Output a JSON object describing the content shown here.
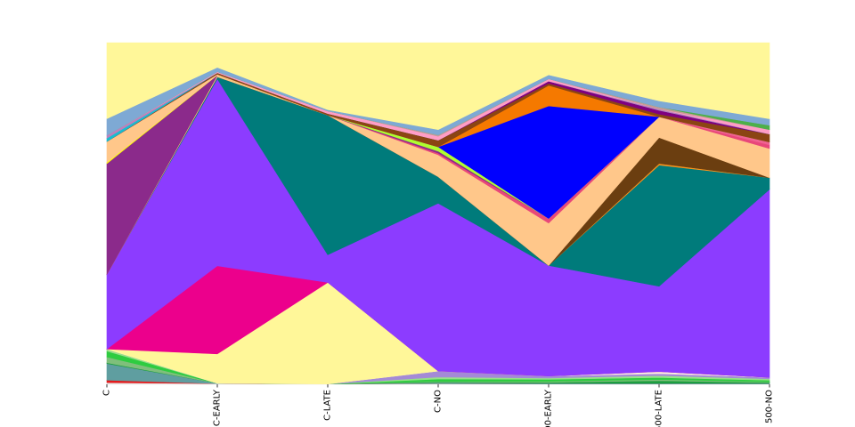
{
  "chart_data": {
    "type": "area",
    "stacked": true,
    "normalized": true,
    "categories": [
      "C",
      "C-EARLY",
      "C-LATE",
      "C-NO",
      "500-EARLY",
      "500-LATE",
      "500-NO"
    ],
    "grid": false,
    "legend": "none",
    "series": [
      {
        "color": "#e6e6e6",
        "values": [
          0.004,
          0.002,
          0.001,
          0.002,
          0.001,
          0.001,
          0.001
        ]
      },
      {
        "color": "#e41a1c",
        "values": [
          0.006,
          0.0,
          0.0,
          0.0,
          0.0,
          0.0,
          0.0
        ]
      },
      {
        "color": "#5f9ea0",
        "values": [
          0.04,
          0.001,
          0.0,
          0.003,
          0.002,
          0.002,
          0.002
        ]
      },
      {
        "color": "#1b9e3e",
        "values": [
          0.002,
          0.0,
          0.0,
          0.002,
          0.003,
          0.008,
          0.002
        ]
      },
      {
        "color": "#7fbf7b",
        "values": [
          0.014,
          0.0,
          0.0,
          0.002,
          0.003,
          0.004,
          0.002
        ]
      },
      {
        "color": "#2ecc40",
        "values": [
          0.014,
          0.0,
          0.0,
          0.007,
          0.006,
          0.006,
          0.004
        ]
      },
      {
        "color": "#98df8a",
        "values": [
          0.005,
          0.0,
          0.0,
          0.006,
          0.004,
          0.006,
          0.004
        ]
      },
      {
        "color": "#a48ad6",
        "values": [
          0.0,
          0.0,
          0.0,
          0.018,
          0.006,
          0.006,
          0.004
        ]
      },
      {
        "color": "#fff0e0",
        "values": [
          0.0,
          0.0,
          0.0,
          0.0,
          0.0,
          0.006,
          0.0
        ]
      },
      {
        "color": "#fff799",
        "values": [
          0.0,
          0.087,
          0.32,
          0.0,
          0.0,
          0.0,
          0.0
        ]
      },
      {
        "color": "#ec008c",
        "values": [
          0.0,
          0.261,
          0.0,
          0.0,
          0.0,
          0.0,
          0.0
        ]
      },
      {
        "color": "#8c3cff",
        "values": [
          0.18,
          0.554,
          0.087,
          0.506,
          0.334,
          0.263,
          0.517
        ]
      },
      {
        "color": "#007b7b",
        "values": [
          0.0,
          0.006,
          0.44,
          0.08,
          0.0,
          0.373,
          0.032
        ]
      },
      {
        "color": "#f7931e",
        "values": [
          0.0,
          0.0,
          0.0,
          0.0,
          0.0,
          0.005,
          0.0
        ]
      },
      {
        "color": "#6b3e10",
        "values": [
          0.0,
          0.0,
          0.0,
          0.0,
          0.0,
          0.08,
          0.0
        ]
      },
      {
        "color": "#ffc78a",
        "values": [
          0.0,
          0.005,
          0.0,
          0.066,
          0.128,
          0.064,
          0.08
        ]
      },
      {
        "color": "#e8477a",
        "values": [
          0.0,
          0.0,
          0.0,
          0.005,
          0.014,
          0.0,
          0.01
        ]
      },
      {
        "color": "#f06292",
        "values": [
          0.0,
          0.0,
          0.0,
          0.0,
          0.0,
          0.0,
          0.008
        ]
      },
      {
        "color": "#8b2a8b",
        "values": [
          0.267,
          0.0,
          0.0,
          0.006,
          0.0,
          0.0,
          0.0
        ]
      },
      {
        "color": "#adff2f",
        "values": [
          0.0,
          0.0,
          0.0,
          0.013,
          0.0,
          0.0,
          0.0
        ]
      },
      {
        "color": "#ffff00",
        "values": [
          0.003,
          0.0,
          0.0,
          0.0,
          0.0,
          0.0,
          0.0
        ]
      },
      {
        "color": "#ffc78a",
        "values": [
          0.05,
          0.003,
          0.0,
          0.0,
          0.0,
          0.0,
          0.0
        ]
      },
      {
        "color": "#0000ff",
        "values": [
          0.0,
          0.0,
          0.0,
          0.0,
          0.34,
          0.0,
          0.0
        ]
      },
      {
        "color": "#f57900",
        "values": [
          0.0,
          0.0,
          0.0,
          0.0,
          0.062,
          0.0,
          0.0
        ]
      },
      {
        "color": "#8b4513",
        "values": [
          0.0,
          0.004,
          0.005,
          0.02,
          0.006,
          0.008,
          0.022
        ]
      },
      {
        "color": "#800080",
        "values": [
          0.0,
          0.0,
          0.0,
          0.0,
          0.007,
          0.012,
          0.0
        ]
      },
      {
        "color": "#17becf",
        "values": [
          0.008,
          0.0,
          0.0,
          0.0,
          0.0,
          0.0,
          0.0
        ]
      },
      {
        "color": "#bc80bd",
        "values": [
          0.007,
          0.0,
          0.0,
          0.0,
          0.0,
          0.004,
          0.0
        ]
      },
      {
        "color": "#ff9dc6",
        "values": [
          0.0,
          0.003,
          0.008,
          0.012,
          0.007,
          0.0,
          0.012
        ]
      },
      {
        "color": "#c49c94",
        "values": [
          0.0,
          0.0,
          0.0,
          0.004,
          0.0,
          0.006,
          0.0
        ]
      },
      {
        "color": "#4daf4a",
        "values": [
          0.0,
          0.0,
          0.0,
          0.0,
          0.0,
          0.0,
          0.012
        ]
      },
      {
        "color": "#7ea9d4",
        "values": [
          0.04,
          0.013,
          0.004,
          0.016,
          0.012,
          0.019,
          0.018
        ]
      },
      {
        "color": "#fff799",
        "values": [
          0.183,
          0.073,
          0.211,
          0.262,
          0.097,
          0.179,
          0.209
        ]
      }
    ]
  }
}
